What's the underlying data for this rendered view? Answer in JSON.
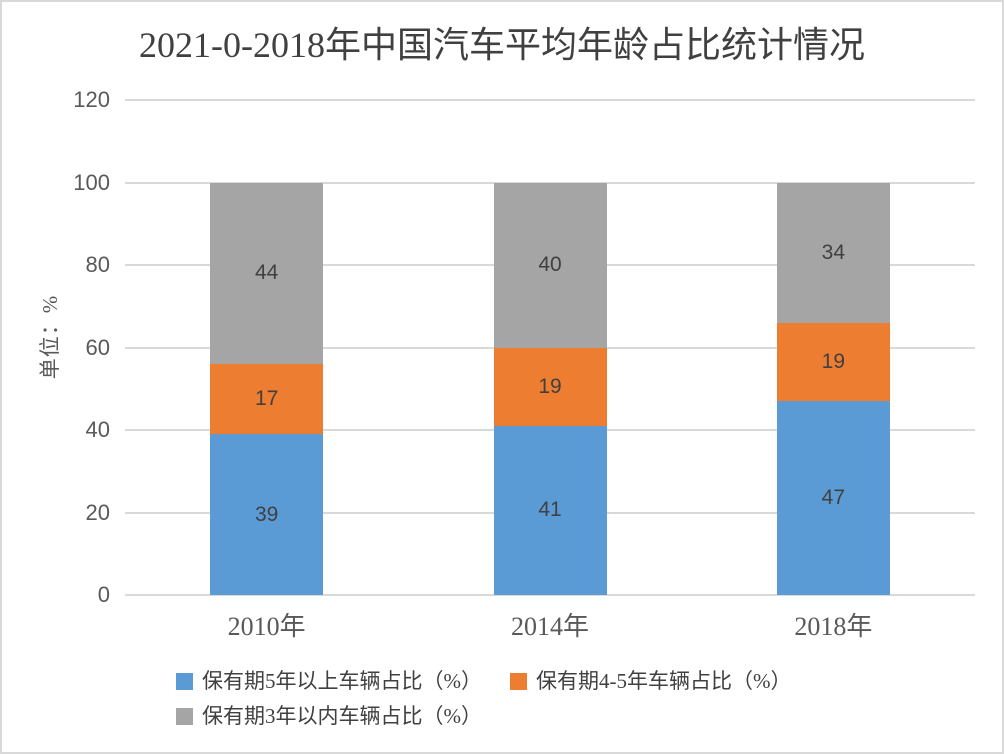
{
  "chart_data": {
    "type": "bar",
    "stacked": true,
    "title": "2021-0-2018年中国汽车平均年龄占比统计情况",
    "ylabel": "单位：%",
    "xlabel": "",
    "categories": [
      "2010年",
      "2014年",
      "2018年"
    ],
    "series": [
      {
        "name": "保有期5年以上车辆占比（%）",
        "color": "#5B9BD5",
        "values": [
          39,
          41,
          47
        ]
      },
      {
        "name": "保有期4-5年车辆占比（%）",
        "color": "#ED7D31",
        "values": [
          17,
          19,
          19
        ]
      },
      {
        "name": "保有期3年以内车辆占比（%）",
        "color": "#A5A5A5",
        "values": [
          44,
          40,
          34
        ]
      }
    ],
    "ylim": [
      0,
      120
    ],
    "yticks": [
      0,
      20,
      40,
      60,
      80,
      100,
      120
    ],
    "grid": true,
    "legend_position": "bottom",
    "colors": {
      "gridline": "#D9D9D9",
      "frame_border": "#D9D9D9",
      "axis_text": "#595959",
      "data_label_text": "#404040",
      "title_text": "#404040",
      "legend_text": "#404040",
      "background": "#FFFFFF"
    }
  }
}
